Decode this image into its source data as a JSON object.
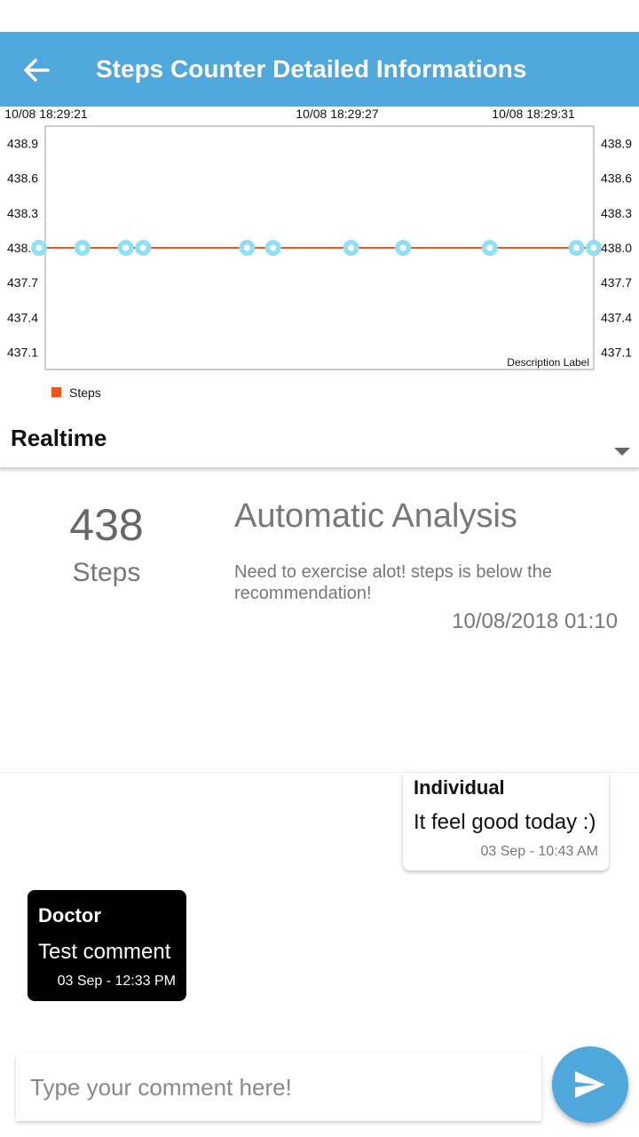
{
  "app_bar": {
    "title": "Steps Counter Detailed Informations",
    "back_icon": "arrow-left-icon"
  },
  "chart_data": {
    "type": "line",
    "x_tick_labels": [
      "10/08 18:29:21",
      "10/08 18:29:27",
      "10/08 18:29:31"
    ],
    "y_tick_labels": [
      "438.9",
      "438.6",
      "438.3",
      "438.0",
      "437.7",
      "437.4",
      "437.1"
    ],
    "ylim": [
      436.95,
      439.05
    ],
    "description": "Description Label",
    "legend_position": "bottom-left",
    "series": [
      {
        "name": "Steps",
        "color": "#f4511e",
        "marker_color": "#8fe0f5",
        "x": [
          0,
          0.5,
          1,
          1.2,
          2.4,
          2.7,
          3.6,
          4.2,
          5.2,
          6.2,
          6.4
        ],
        "values": [
          438,
          438,
          438,
          438,
          438,
          438,
          438,
          438,
          438,
          438,
          438
        ]
      }
    ],
    "x_range": [
      0,
      6.4
    ],
    "grid": false
  },
  "period": {
    "label": "Realtime"
  },
  "summary": {
    "steps_value": "438",
    "steps_unit": "Steps",
    "analysis_title": "Automatic Analysis",
    "analysis_text": "Need to exercise alot! steps is below the recommendation!",
    "analysis_time": "10/08/2018 01:10"
  },
  "comments": [
    {
      "author": "Individual",
      "message": "It feel good today :)",
      "time": "03 Sep - 10:43 AM"
    },
    {
      "author": "Doctor",
      "message": "Test comment",
      "time": "03 Sep - 12:33 PM"
    }
  ],
  "input": {
    "placeholder": "Type your comment here!",
    "send_icon": "send-icon"
  }
}
